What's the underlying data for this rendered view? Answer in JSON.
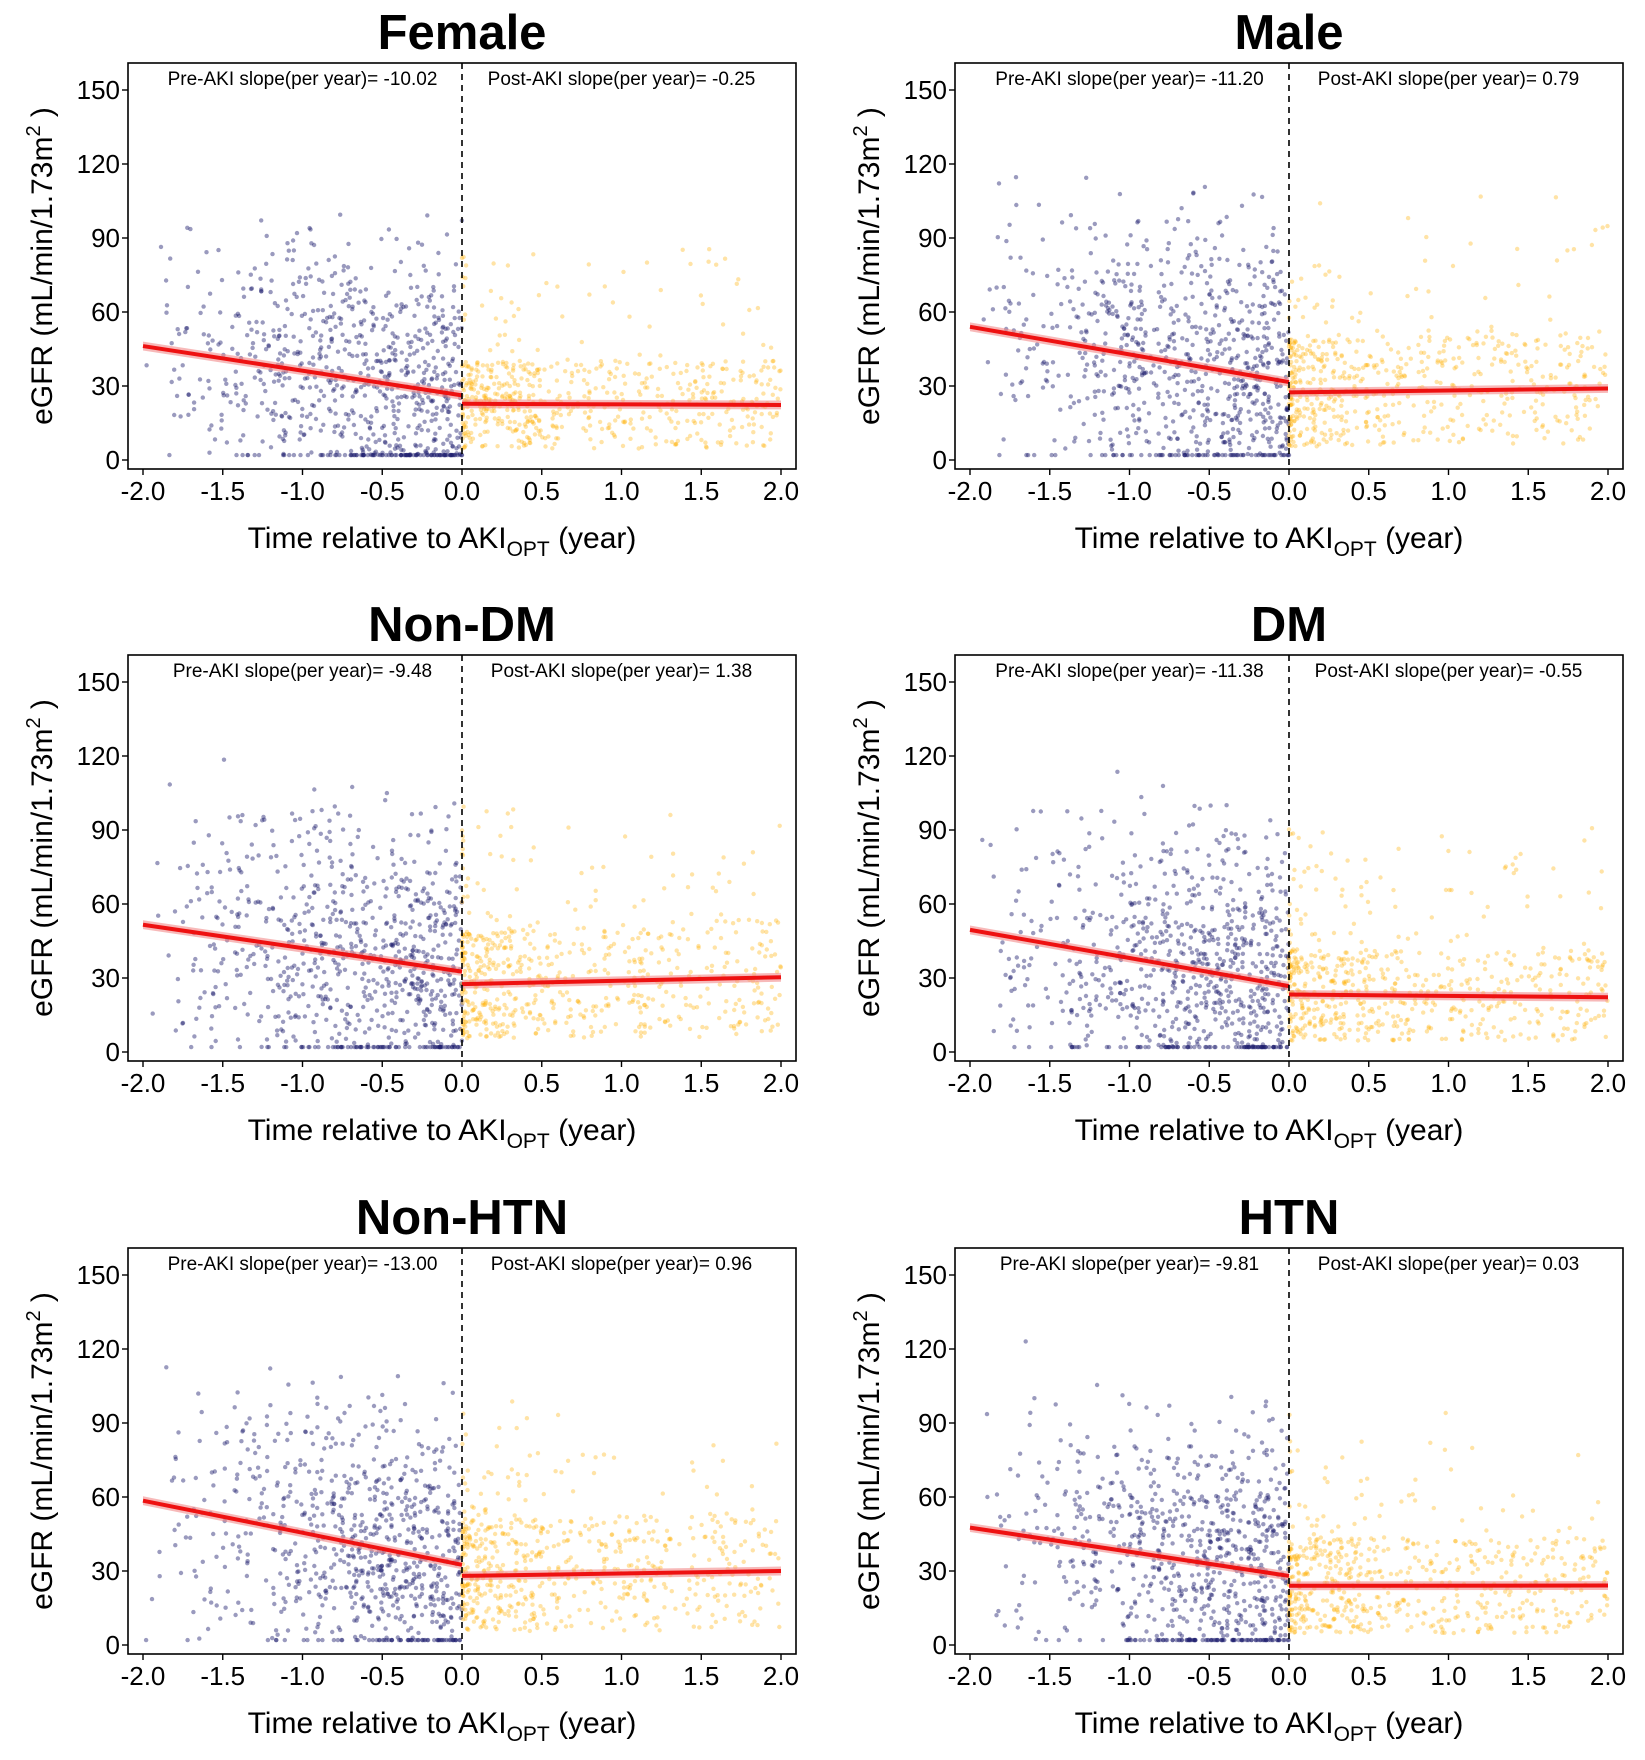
{
  "colors": {
    "pre_points": "#1f1f6e",
    "post_points": "#ffb000",
    "fit_line": "#ee1111",
    "fit_band": "#f28a8a",
    "axis": "#000000"
  },
  "shared": {
    "xlabel_prefix": "Time relative to",
    "xlabel_main": "AKI",
    "xlabel_sub": "OPT",
    "xlabel_suffix": "(year)",
    "ylabel_prefix": "eGFR (mL/min/1.73m",
    "ylabel_sup": "2",
    "ylabel_suffix": ")",
    "pre_label": "Pre-AKI slope(per year)= ",
    "post_label": "Post-AKI slope(per year)= ",
    "x_ticks": [
      "-2.0",
      "-1.5",
      "-1.0",
      "-0.5",
      "0.0",
      "0.5",
      "1.0",
      "1.5",
      "2.0"
    ],
    "y_ticks": [
      "0",
      "30",
      "60",
      "90",
      "120",
      "150"
    ]
  },
  "chart_data": [
    {
      "type": "scatter",
      "title": "Female",
      "xlim": [
        -2,
        2
      ],
      "ylim": [
        0,
        150
      ],
      "grid": false,
      "pre_slope": "-10.02",
      "post_slope": "-0.25",
      "pre_fit": {
        "x": [
          -2.0,
          0.0
        ],
        "y": [
          46.2,
          26.2
        ]
      },
      "post_fit": {
        "x": [
          0.0,
          2.0
        ],
        "y": [
          22.8,
          22.3
        ]
      }
    },
    {
      "type": "scatter",
      "title": "Male",
      "xlim": [
        -2,
        2
      ],
      "ylim": [
        0,
        150
      ],
      "grid": false,
      "pre_slope": "-11.20",
      "post_slope": "0.79",
      "pre_fit": {
        "x": [
          -2.0,
          0.0
        ],
        "y": [
          54.0,
          31.6
        ]
      },
      "post_fit": {
        "x": [
          0.0,
          2.0
        ],
        "y": [
          27.4,
          29.0
        ]
      }
    },
    {
      "type": "scatter",
      "title": "Non-DM",
      "xlim": [
        -2,
        2
      ],
      "ylim": [
        0,
        150
      ],
      "grid": false,
      "pre_slope": "-9.48",
      "post_slope": "1.38",
      "pre_fit": {
        "x": [
          -2.0,
          0.0
        ],
        "y": [
          51.6,
          32.6
        ]
      },
      "post_fit": {
        "x": [
          0.0,
          2.0
        ],
        "y": [
          27.5,
          30.3
        ]
      }
    },
    {
      "type": "scatter",
      "title": "DM",
      "xlim": [
        -2,
        2
      ],
      "ylim": [
        0,
        150
      ],
      "grid": false,
      "pre_slope": "-11.38",
      "post_slope": "-0.55",
      "pre_fit": {
        "x": [
          -2.0,
          0.0
        ],
        "y": [
          49.5,
          26.7
        ]
      },
      "post_fit": {
        "x": [
          0.0,
          2.0
        ],
        "y": [
          23.3,
          22.2
        ]
      }
    },
    {
      "type": "scatter",
      "title": "Non-HTN",
      "xlim": [
        -2,
        2
      ],
      "ylim": [
        0,
        150
      ],
      "grid": false,
      "pre_slope": "-13.00",
      "post_slope": "0.96",
      "pre_fit": {
        "x": [
          -2.0,
          0.0
        ],
        "y": [
          58.5,
          32.5
        ]
      },
      "post_fit": {
        "x": [
          0.0,
          2.0
        ],
        "y": [
          28.0,
          30.0
        ]
      }
    },
    {
      "type": "scatter",
      "title": "HTN",
      "xlim": [
        -2,
        2
      ],
      "ylim": [
        0,
        150
      ],
      "grid": false,
      "pre_slope": "-9.81",
      "post_slope": "0.03",
      "pre_fit": {
        "x": [
          -2.0,
          0.0
        ],
        "y": [
          47.6,
          28.0
        ]
      },
      "post_fit": {
        "x": [
          0.0,
          2.0
        ],
        "y": [
          24.0,
          24.1
        ]
      }
    }
  ]
}
